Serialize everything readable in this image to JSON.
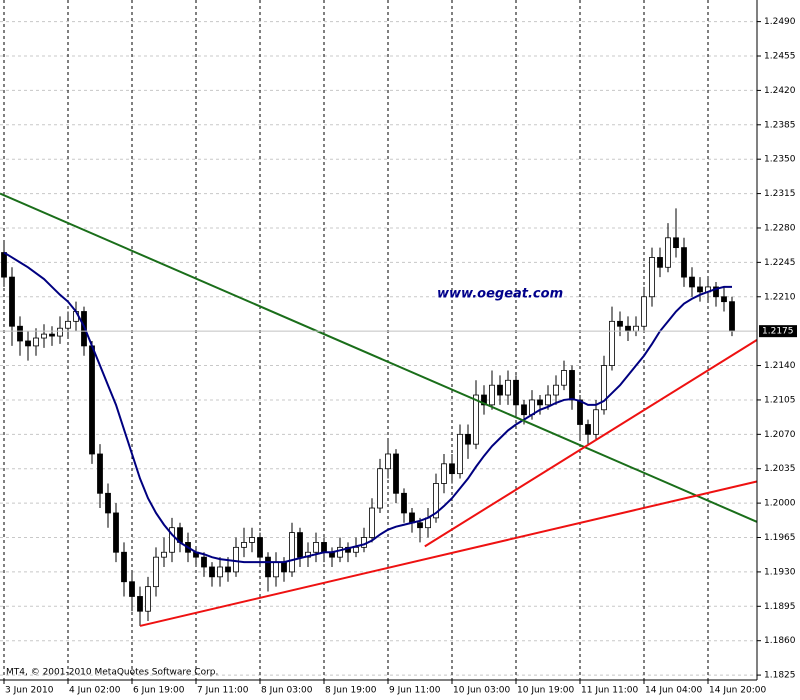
{
  "chart_data": {
    "type": "candlestick",
    "watermark": "www.oegeat.com",
    "copyright": "MT4, © 2001-2010 MetaQuotes Software Corp.",
    "last_price_label": "1.2175",
    "categories": [
      "3 Jun 2010",
      null,
      null,
      null,
      null,
      null,
      null,
      null,
      "4 Jun 02:00",
      null,
      null,
      null,
      null,
      null,
      null,
      null,
      "6 Jun 19:00",
      null,
      null,
      null,
      null,
      null,
      null,
      null,
      "7 Jun 11:00",
      null,
      null,
      null,
      null,
      null,
      null,
      null,
      "8 Jun 03:00",
      null,
      null,
      null,
      null,
      null,
      null,
      null,
      "8 Jun 19:00",
      null,
      null,
      null,
      null,
      null,
      null,
      null,
      "9 Jun 11:00",
      null,
      null,
      null,
      null,
      null,
      null,
      null,
      "10 Jun 03:00",
      null,
      null,
      null,
      null,
      null,
      null,
      null,
      "10 Jun 19:00",
      null,
      null,
      null,
      null,
      null,
      null,
      null,
      "11 Jun 11:00",
      null,
      null,
      null,
      null,
      null,
      null,
      null,
      "14 Jun 04:00",
      null,
      null,
      null,
      null,
      null,
      null,
      null,
      "14 Jun 20:00",
      null,
      null,
      null
    ],
    "open": [
      1.2255,
      1.223,
      1.218,
      1.2165,
      1.216,
      1.2168,
      1.2172,
      1.217,
      1.2178,
      1.2185,
      1.2195,
      1.216,
      1.205,
      1.201,
      1.199,
      1.195,
      1.192,
      1.1905,
      1.189,
      1.1915,
      1.1945,
      1.195,
      1.1975,
      1.196,
      1.195,
      1.1945,
      1.1935,
      1.1925,
      1.1935,
      1.193,
      1.1955,
      1.196,
      1.1965,
      1.1945,
      1.1925,
      1.194,
      1.193,
      1.197,
      1.1945,
      1.195,
      1.196,
      1.195,
      1.1945,
      1.1955,
      1.195,
      1.1955,
      1.1965,
      1.1995,
      1.2035,
      1.205,
      1.201,
      1.199,
      1.198,
      1.1975,
      1.1985,
      1.202,
      1.204,
      1.203,
      1.207,
      1.206,
      1.211,
      1.21,
      1.212,
      1.211,
      1.2125,
      1.21,
      1.209,
      1.2105,
      1.21,
      1.211,
      1.212,
      1.2135,
      1.2105,
      1.208,
      1.207,
      1.2095,
      1.214,
      1.2185,
      1.218,
      1.2175,
      1.218,
      1.221,
      1.225,
      1.224,
      1.227,
      1.226,
      1.223,
      1.222,
      1.2215,
      1.222,
      1.221,
      1.2205
    ],
    "high": [
      1.2265,
      1.224,
      1.219,
      1.2175,
      1.2178,
      1.2182,
      1.218,
      1.219,
      1.2195,
      1.2205,
      1.22,
      1.2165,
      1.206,
      1.202,
      1.2,
      1.196,
      1.193,
      1.1915,
      1.1925,
      1.1955,
      1.1965,
      1.1985,
      1.198,
      1.197,
      1.1955,
      1.195,
      1.194,
      1.1945,
      1.1945,
      1.1965,
      1.1975,
      1.1975,
      1.197,
      1.195,
      1.195,
      1.1945,
      1.198,
      1.1975,
      1.196,
      1.197,
      1.1965,
      1.1955,
      1.1965,
      1.196,
      1.1965,
      1.1975,
      1.2005,
      1.2045,
      1.2065,
      1.2055,
      1.2015,
      1.1995,
      1.1985,
      1.1995,
      1.203,
      1.205,
      1.205,
      1.208,
      1.208,
      1.2125,
      1.212,
      1.2135,
      1.213,
      1.2135,
      1.213,
      1.2105,
      1.2115,
      1.211,
      1.212,
      1.213,
      1.2145,
      1.214,
      1.211,
      1.2085,
      1.2105,
      1.215,
      1.22,
      1.2195,
      1.219,
      1.219,
      1.222,
      1.226,
      1.226,
      1.2285,
      1.23,
      1.227,
      1.224,
      1.223,
      1.223,
      1.2225,
      1.222,
      1.221
    ],
    "low": [
      1.222,
      1.216,
      1.215,
      1.2145,
      1.215,
      1.2158,
      1.216,
      1.2162,
      1.217,
      1.2175,
      1.215,
      1.204,
      1.1995,
      1.1975,
      1.194,
      1.1905,
      1.189,
      1.1875,
      1.188,
      1.1905,
      1.1935,
      1.194,
      1.195,
      1.194,
      1.1935,
      1.1925,
      1.1915,
      1.1915,
      1.192,
      1.1925,
      1.1945,
      1.195,
      1.1935,
      1.191,
      1.1915,
      1.192,
      1.1925,
      1.1935,
      1.1935,
      1.194,
      1.194,
      1.1935,
      1.194,
      1.194,
      1.1945,
      1.195,
      1.196,
      1.199,
      1.2025,
      1.2,
      1.198,
      1.197,
      1.196,
      1.1965,
      1.198,
      1.201,
      1.202,
      1.2025,
      1.2045,
      1.2055,
      1.209,
      1.2095,
      1.21,
      1.21,
      1.209,
      1.208,
      1.2085,
      1.209,
      1.2095,
      1.21,
      1.2115,
      1.2095,
      1.2065,
      1.206,
      1.2065,
      1.209,
      1.2135,
      1.217,
      1.2165,
      1.217,
      1.2175,
      1.22,
      1.223,
      1.2235,
      1.225,
      1.222,
      1.221,
      1.2205,
      1.2205,
      1.22,
      1.2195,
      1.217
    ],
    "close": [
      1.223,
      1.218,
      1.2165,
      1.216,
      1.2168,
      1.2172,
      1.217,
      1.2178,
      1.2185,
      1.2195,
      1.216,
      1.205,
      1.201,
      1.199,
      1.195,
      1.192,
      1.1905,
      1.189,
      1.1915,
      1.1945,
      1.195,
      1.1975,
      1.196,
      1.195,
      1.1945,
      1.1935,
      1.1925,
      1.1935,
      1.193,
      1.1955,
      1.196,
      1.1965,
      1.1945,
      1.1925,
      1.194,
      1.193,
      1.197,
      1.1945,
      1.195,
      1.196,
      1.195,
      1.1945,
      1.1955,
      1.195,
      1.1955,
      1.1965,
      1.1995,
      1.2035,
      1.205,
      1.201,
      1.199,
      1.198,
      1.1975,
      1.1985,
      1.202,
      1.204,
      1.203,
      1.207,
      1.206,
      1.211,
      1.21,
      1.212,
      1.211,
      1.2125,
      1.21,
      1.209,
      1.2105,
      1.21,
      1.211,
      1.212,
      1.2135,
      1.2105,
      1.208,
      1.207,
      1.2095,
      1.214,
      1.2185,
      1.218,
      1.2175,
      1.218,
      1.221,
      1.225,
      1.224,
      1.227,
      1.226,
      1.223,
      1.222,
      1.2215,
      1.222,
      1.221,
      1.2205,
      1.2175
    ],
    "ma": {
      "color": "#000080",
      "values": [
        1.2255,
        1.225,
        1.2245,
        1.224,
        1.2234,
        1.2228,
        1.222,
        1.2212,
        1.2205,
        1.2195,
        1.218,
        1.216,
        1.214,
        1.212,
        1.21,
        1.2075,
        1.205,
        1.2025,
        1.2005,
        1.199,
        1.1978,
        1.1968,
        1.196,
        1.1955,
        1.195,
        1.1948,
        1.1945,
        1.1943,
        1.1942,
        1.1941,
        1.194,
        1.194,
        1.194,
        1.194,
        1.194,
        1.194,
        1.1942,
        1.1944,
        1.1946,
        1.1948,
        1.195,
        1.195,
        1.1952,
        1.1954,
        1.1956,
        1.1958,
        1.1962,
        1.1968,
        1.1973,
        1.1976,
        1.1978,
        1.198,
        1.1982,
        1.1985,
        1.199,
        1.1997,
        1.2005,
        1.2015,
        1.2025,
        1.2037,
        1.2048,
        1.2058,
        1.2066,
        1.2074,
        1.208,
        1.2085,
        1.209,
        1.2095,
        1.2098,
        1.2102,
        1.2105,
        1.2106,
        1.2104,
        1.21,
        1.21,
        1.2104,
        1.2112,
        1.212,
        1.213,
        1.214,
        1.215,
        1.2162,
        1.2175,
        1.2185,
        1.2195,
        1.2203,
        1.2208,
        1.2212,
        1.2215,
        1.2218,
        1.222,
        1.222
      ]
    },
    "trendlines": [
      {
        "color": "#1a6e1a",
        "x": [
          -0.5,
          94.1
        ],
        "y": [
          1.2315,
          1.1981
        ]
      },
      {
        "color": "#ee1111",
        "x": [
          17,
          94.1
        ],
        "y": [
          1.1875,
          1.2022
        ]
      },
      {
        "color": "#ee1111",
        "x": [
          52.6,
          94.1
        ],
        "y": [
          1.1956,
          1.2166
        ]
      }
    ],
    "ylim": [
      1.182,
      1.2512
    ],
    "yticks": [
      {
        "value": 1.249,
        "label": "1.2490"
      },
      {
        "value": 1.2455,
        "label": "1.2455"
      },
      {
        "value": 1.242,
        "label": "1.2420"
      },
      {
        "value": 1.2385,
        "label": "1.2385"
      },
      {
        "value": 1.235,
        "label": "1.2350"
      },
      {
        "value": 1.2315,
        "label": "1.2315"
      },
      {
        "value": 1.228,
        "label": "1.2280"
      },
      {
        "value": 1.2245,
        "label": "1.2245"
      },
      {
        "value": 1.221,
        "label": "1.2210"
      },
      {
        "value": 1.214,
        "label": "1.2140"
      },
      {
        "value": 1.2105,
        "label": "1.2105"
      },
      {
        "value": 1.207,
        "label": "1.2070"
      },
      {
        "value": 1.2035,
        "label": "1.2035"
      },
      {
        "value": 1.2,
        "label": "1.2000"
      },
      {
        "value": 1.1965,
        "label": "1.1965"
      },
      {
        "value": 1.193,
        "label": "1.1930"
      },
      {
        "value": 1.1895,
        "label": "1.1895"
      },
      {
        "value": 1.186,
        "label": "1.1860"
      },
      {
        "value": 1.1825,
        "label": "1.1825"
      }
    ],
    "grid": true
  }
}
